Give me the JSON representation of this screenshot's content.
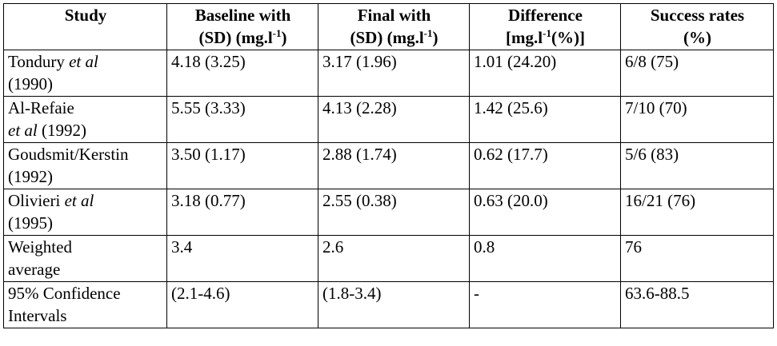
{
  "headers": {
    "study": "Study",
    "baseline": {
      "line1": "Baseline with",
      "line2_pre": "(SD) (mg.l",
      "line2_sup": "-1",
      "line2_post": ")"
    },
    "final": {
      "line1": "Final with",
      "line2_pre": "(SD) (mg.l",
      "line2_sup": "-1",
      "line2_post": ")"
    },
    "difference": {
      "line1": "Difference",
      "line2_pre": "[mg.l",
      "line2_sup": "-1",
      "line2_post": "(%)]"
    },
    "success": {
      "line1": "Success rates",
      "line2": "(%)"
    }
  },
  "rows": [
    {
      "study_a": "Tondury ",
      "study_b_italic": "et al",
      "study_c": "",
      "study_line2": "(1990)",
      "baseline": "4.18 (3.25)",
      "final": "3.17 (1.96)",
      "difference": "1.01 (24.20)",
      "success": "6/8 (75)"
    },
    {
      "study_a": "Al-Refaie",
      "study_b_italic": "",
      "study_c": "",
      "study_line2_italic": "et al",
      "study_line2": " (1992)",
      "baseline": "5.55 (3.33)",
      "final": "4.13 (2.28)",
      "difference": "1.42 (25.6)",
      "success": "7/10 (70)"
    },
    {
      "study_a": "Goudsmit/Kerstin",
      "study_line2": "(1992)",
      "baseline": "3.50 (1.17)",
      "final": "2.88 (1.74)",
      "difference": "0.62 (17.7)",
      "success": "5/6 (83)"
    },
    {
      "study_a": "Olivieri ",
      "study_b_italic": "et al",
      "study_line2": "(1995)",
      "baseline": "3.18 (0.77)",
      "final": "2.55 (0.38)",
      "difference": "0.63 (20.0)",
      "success": "16/21 (76)"
    },
    {
      "study_a": "Weighted",
      "study_line2": "average",
      "baseline": "3.4",
      "final": "2.6",
      "difference": "0.8",
      "success": "76"
    },
    {
      "study_a": "95% Confidence",
      "study_line2": "Intervals",
      "baseline": "(2.1-4.6)",
      "final": "(1.8-3.4)",
      "difference": "-",
      "success": "63.6-88.5"
    }
  ]
}
